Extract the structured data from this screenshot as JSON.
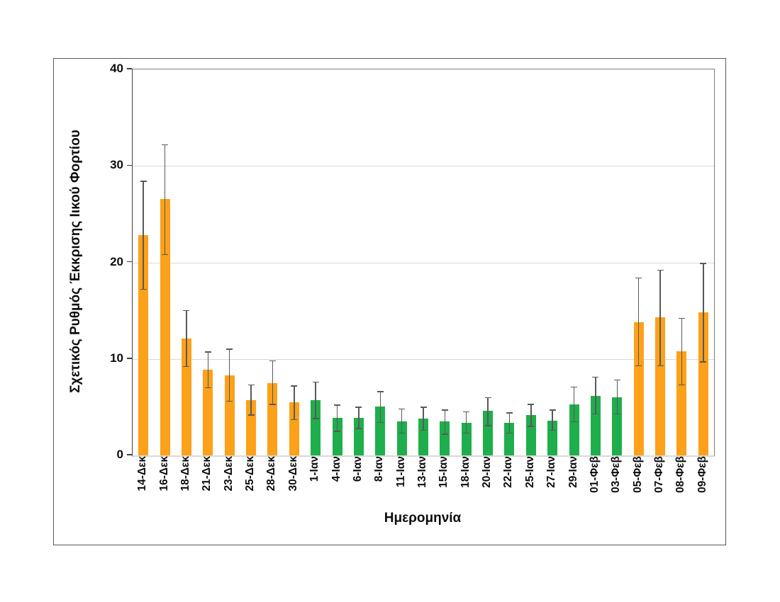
{
  "chart_data": {
    "type": "bar",
    "title": "",
    "xlabel": "Ημερομηνία",
    "ylabel": "Σχετικός Ρυθμός Έκκρισης Ιικού Φορτίου",
    "ylim": [
      0,
      40
    ],
    "yticks": [
      0,
      10,
      20,
      30,
      40
    ],
    "grid": "horizontal-light",
    "legend": "none",
    "error_bars": true,
    "colors": {
      "orange": "#FCA119",
      "green": "#1FAE4C",
      "error": "#595959",
      "gridline": "#d9d9d9"
    },
    "points": [
      {
        "label": "14-Δεκ",
        "value": 22.8,
        "err_lo": 17.2,
        "err_hi": 28.4,
        "color": "orange"
      },
      {
        "label": "16-Δεκ",
        "value": 26.6,
        "err_lo": 20.8,
        "err_hi": 32.2,
        "color": "orange"
      },
      {
        "label": "18-Δεκ",
        "value": 12.1,
        "err_lo": 9.2,
        "err_hi": 15.0,
        "color": "orange"
      },
      {
        "label": "21-Δεκ",
        "value": 8.9,
        "err_lo": 7.0,
        "err_hi": 10.7,
        "color": "orange"
      },
      {
        "label": "23-Δεκ",
        "value": 8.3,
        "err_lo": 5.6,
        "err_hi": 11.0,
        "color": "orange"
      },
      {
        "label": "25-Δεκ",
        "value": 5.7,
        "err_lo": 4.2,
        "err_hi": 7.3,
        "color": "orange"
      },
      {
        "label": "28-Δεκ",
        "value": 7.5,
        "err_lo": 5.3,
        "err_hi": 9.8,
        "color": "orange"
      },
      {
        "label": "30-Δεκ",
        "value": 5.5,
        "err_lo": 3.7,
        "err_hi": 7.2,
        "color": "orange"
      },
      {
        "label": "1-Ιαν",
        "value": 5.7,
        "err_lo": 3.8,
        "err_hi": 7.6,
        "color": "green"
      },
      {
        "label": "4-Ιαν",
        "value": 3.9,
        "err_lo": 2.5,
        "err_hi": 5.2,
        "color": "green"
      },
      {
        "label": "6-Ιαν",
        "value": 3.9,
        "err_lo": 2.8,
        "err_hi": 5.0,
        "color": "green"
      },
      {
        "label": "8-Ιαν",
        "value": 5.1,
        "err_lo": 3.4,
        "err_hi": 6.6,
        "color": "green"
      },
      {
        "label": "11-Ιαν",
        "value": 3.5,
        "err_lo": 2.3,
        "err_hi": 4.8,
        "color": "green"
      },
      {
        "label": "13-Ιαν",
        "value": 3.8,
        "err_lo": 2.6,
        "err_hi": 5.0,
        "color": "green"
      },
      {
        "label": "15-Ιαν",
        "value": 3.5,
        "err_lo": 2.2,
        "err_hi": 4.7,
        "color": "green"
      },
      {
        "label": "18-Ιαν",
        "value": 3.4,
        "err_lo": 2.3,
        "err_hi": 4.5,
        "color": "green"
      },
      {
        "label": "20-Ιαν",
        "value": 4.6,
        "err_lo": 3.1,
        "err_hi": 6.0,
        "color": "green"
      },
      {
        "label": "22-Ιαν",
        "value": 3.4,
        "err_lo": 2.3,
        "err_hi": 4.4,
        "color": "green"
      },
      {
        "label": "25-Ιαν",
        "value": 4.2,
        "err_lo": 3.0,
        "err_hi": 5.3,
        "color": "green"
      },
      {
        "label": "27-Ιαν",
        "value": 3.6,
        "err_lo": 2.6,
        "err_hi": 4.7,
        "color": "green"
      },
      {
        "label": "29-Ιαν",
        "value": 5.3,
        "err_lo": 3.5,
        "err_hi": 7.1,
        "color": "green"
      },
      {
        "label": "01-Φεβ",
        "value": 6.2,
        "err_lo": 4.3,
        "err_hi": 8.1,
        "color": "green"
      },
      {
        "label": "03-Φεβ",
        "value": 6.0,
        "err_lo": 4.3,
        "err_hi": 7.8,
        "color": "green"
      },
      {
        "label": "05-Φεβ",
        "value": 13.8,
        "err_lo": 9.3,
        "err_hi": 18.4,
        "color": "orange"
      },
      {
        "label": "07-Φεβ",
        "value": 14.3,
        "err_lo": 9.3,
        "err_hi": 19.2,
        "color": "orange"
      },
      {
        "label": "08-Φεβ",
        "value": 10.8,
        "err_lo": 7.3,
        "err_hi": 14.2,
        "color": "orange"
      },
      {
        "label": "09-Φεβ",
        "value": 14.8,
        "err_lo": 9.7,
        "err_hi": 19.9,
        "color": "orange"
      }
    ]
  }
}
